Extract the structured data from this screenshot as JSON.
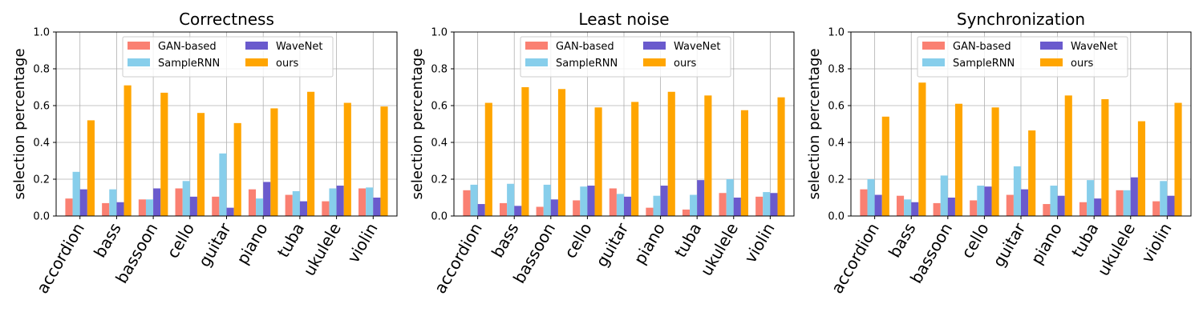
{
  "chart_data": [
    {
      "type": "bar",
      "title": "Correctness",
      "xlabel": "",
      "ylabel": "selection percentage",
      "ylim": [
        0,
        1.0
      ],
      "yticks": [
        "0.0",
        "0.2",
        "0.4",
        "0.6",
        "0.8",
        "1.0"
      ],
      "grid": true,
      "legend_position": "top-center",
      "categories": [
        "accordion",
        "bass",
        "bassoon",
        "cello",
        "guitar",
        "piano",
        "tuba",
        "ukulele",
        "violin"
      ],
      "series": [
        {
          "name": "GAN-based",
          "color": "#fa8072",
          "values": [
            0.095,
            0.07,
            0.09,
            0.15,
            0.105,
            0.145,
            0.115,
            0.08,
            0.15
          ]
        },
        {
          "name": "SampleRNN",
          "color": "#87ceeb",
          "values": [
            0.24,
            0.145,
            0.09,
            0.19,
            0.34,
            0.095,
            0.135,
            0.15,
            0.155
          ]
        },
        {
          "name": "WaveNet",
          "color": "#6a5acd",
          "values": [
            0.145,
            0.075,
            0.15,
            0.105,
            0.045,
            0.185,
            0.08,
            0.165,
            0.1
          ]
        },
        {
          "name": "ours",
          "color": "#ffa500",
          "values": [
            0.52,
            0.71,
            0.67,
            0.56,
            0.505,
            0.585,
            0.675,
            0.615,
            0.595
          ]
        }
      ]
    },
    {
      "type": "bar",
      "title": "Least noise",
      "xlabel": "",
      "ylabel": "selection percentage",
      "ylim": [
        0,
        1.0
      ],
      "yticks": [
        "0.0",
        "0.2",
        "0.4",
        "0.6",
        "0.8",
        "1.0"
      ],
      "grid": true,
      "legend_position": "top-center",
      "categories": [
        "accordion",
        "bass",
        "bassoon",
        "cello",
        "guitar",
        "piano",
        "tuba",
        "ukulele",
        "violin"
      ],
      "series": [
        {
          "name": "GAN-based",
          "color": "#fa8072",
          "values": [
            0.14,
            0.07,
            0.05,
            0.085,
            0.15,
            0.045,
            0.035,
            0.125,
            0.105
          ]
        },
        {
          "name": "SampleRNN",
          "color": "#87ceeb",
          "values": [
            0.17,
            0.175,
            0.17,
            0.16,
            0.12,
            0.11,
            0.115,
            0.2,
            0.13
          ]
        },
        {
          "name": "WaveNet",
          "color": "#6a5acd",
          "values": [
            0.065,
            0.055,
            0.09,
            0.165,
            0.105,
            0.165,
            0.195,
            0.1,
            0.125
          ]
        },
        {
          "name": "ours",
          "color": "#ffa500",
          "values": [
            0.615,
            0.7,
            0.69,
            0.59,
            0.62,
            0.675,
            0.655,
            0.575,
            0.645
          ]
        }
      ]
    },
    {
      "type": "bar",
      "title": "Synchronization",
      "xlabel": "",
      "ylabel": "selection percentage",
      "ylim": [
        0,
        1.0
      ],
      "yticks": [
        "0.0",
        "0.2",
        "0.4",
        "0.6",
        "0.8",
        "1.0"
      ],
      "grid": true,
      "legend_position": "top-center",
      "categories": [
        "accordion",
        "bass",
        "bassoon",
        "cello",
        "guitar",
        "piano",
        "tuba",
        "ukulele",
        "violin"
      ],
      "series": [
        {
          "name": "GAN-based",
          "color": "#fa8072",
          "values": [
            0.145,
            0.11,
            0.07,
            0.085,
            0.115,
            0.065,
            0.075,
            0.14,
            0.08
          ]
        },
        {
          "name": "SampleRNN",
          "color": "#87ceeb",
          "values": [
            0.2,
            0.09,
            0.22,
            0.165,
            0.27,
            0.165,
            0.195,
            0.14,
            0.19
          ]
        },
        {
          "name": "WaveNet",
          "color": "#6a5acd",
          "values": [
            0.115,
            0.075,
            0.1,
            0.16,
            0.145,
            0.11,
            0.095,
            0.21,
            0.11
          ]
        },
        {
          "name": "ours",
          "color": "#ffa500",
          "values": [
            0.54,
            0.725,
            0.61,
            0.59,
            0.465,
            0.655,
            0.635,
            0.515,
            0.615
          ]
        }
      ]
    }
  ]
}
